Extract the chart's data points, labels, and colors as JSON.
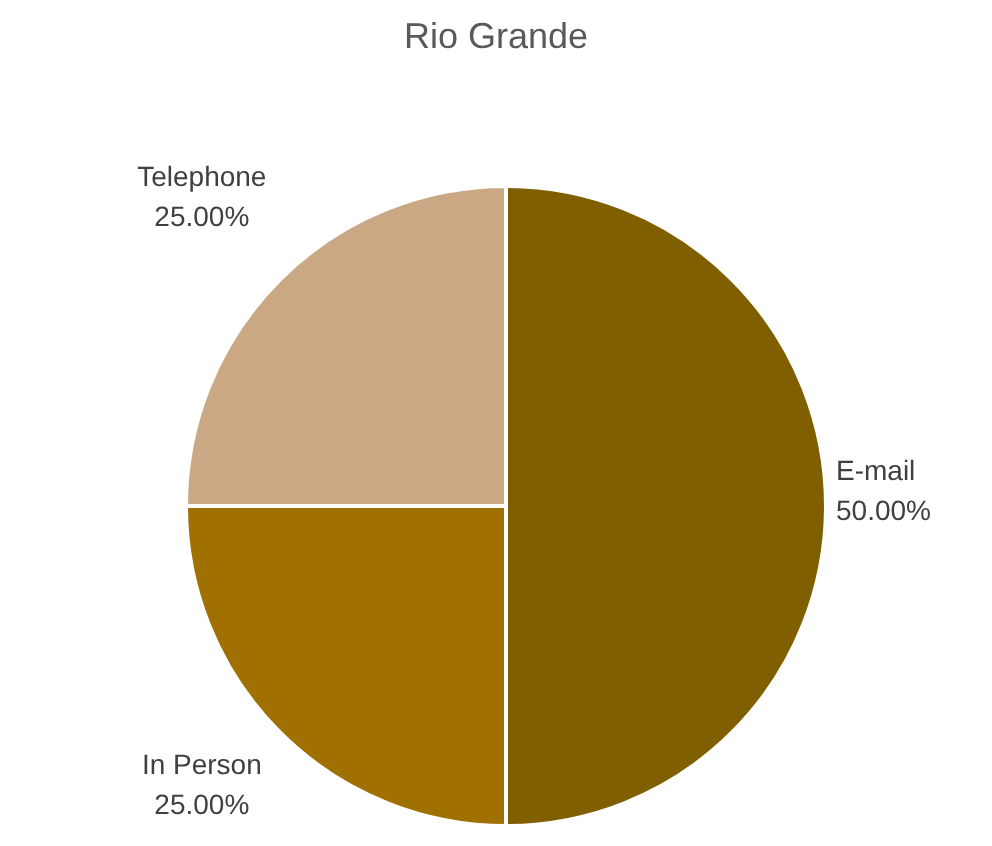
{
  "chart_data": {
    "type": "pie",
    "title": "Rio Grande",
    "categories": [
      "E-mail",
      "In Person",
      "Telephone"
    ],
    "values": [
      50,
      25,
      25
    ],
    "value_labels": [
      "50.00%",
      "25.00%",
      "25.00%"
    ],
    "colors": [
      "#7f5f00",
      "#a07000",
      "#c9a883"
    ],
    "legend": false
  }
}
